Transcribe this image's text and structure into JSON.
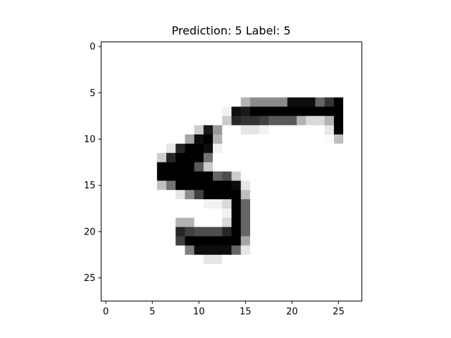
{
  "title": "Prediction: 5 Label: 5",
  "chart_data": {
    "type": "heatmap",
    "title": "Prediction: 5 Label: 5",
    "xlabel": "",
    "ylabel": "",
    "x_ticks": [
      0,
      5,
      10,
      15,
      20,
      25
    ],
    "y_ticks": [
      0,
      5,
      10,
      15,
      20,
      25
    ],
    "xlim": [
      -0.5,
      27.5
    ],
    "ylim": [
      27.5,
      -0.5
    ],
    "colormap": "gray_r",
    "grid": false,
    "matrix": [
      [
        0,
        0,
        0,
        0,
        0,
        0,
        0,
        0,
        0,
        0,
        0,
        0,
        0,
        0,
        0,
        0,
        0,
        0,
        0,
        0,
        0,
        0,
        0,
        0,
        0,
        0,
        0,
        0
      ],
      [
        0,
        0,
        0,
        0,
        0,
        0,
        0,
        0,
        0,
        0,
        0,
        0,
        0,
        0,
        0,
        0,
        0,
        0,
        0,
        0,
        0,
        0,
        0,
        0,
        0,
        0,
        0,
        0
      ],
      [
        0,
        0,
        0,
        0,
        0,
        0,
        0,
        0,
        0,
        0,
        0,
        0,
        0,
        0,
        0,
        0,
        0,
        0,
        0,
        0,
        0,
        0,
        0,
        0,
        0,
        0,
        0,
        0
      ],
      [
        0,
        0,
        0,
        0,
        0,
        0,
        0,
        0,
        0,
        0,
        0,
        0,
        0,
        0,
        0,
        0,
        0,
        0,
        0,
        0,
        0,
        0,
        0,
        0,
        0,
        0,
        0,
        0
      ],
      [
        0,
        0,
        0,
        0,
        0,
        0,
        0,
        0,
        0,
        0,
        0,
        0,
        0,
        0,
        0,
        0,
        0,
        0,
        0,
        0,
        0,
        0,
        0,
        0,
        0,
        0,
        0,
        0
      ],
      [
        0,
        0,
        0,
        0,
        0,
        0,
        0,
        0,
        0,
        0,
        0,
        0,
        0,
        0,
        0,
        0,
        0,
        0,
        0,
        0,
        0,
        0,
        0,
        0,
        0,
        0,
        0,
        0
      ],
      [
        0,
        0,
        0,
        0,
        0,
        0,
        0,
        0,
        0,
        0,
        0,
        0,
        0,
        0,
        0,
        0.3,
        0.45,
        0.45,
        0.45,
        0.45,
        0.95,
        0.95,
        0.95,
        0.6,
        0.8,
        1,
        0,
        0
      ],
      [
        0,
        0,
        0,
        0,
        0,
        0,
        0,
        0,
        0,
        0,
        0,
        0,
        0,
        0.05,
        0.95,
        0.9,
        1,
        1,
        1,
        1,
        1,
        1,
        1,
        1,
        1,
        1,
        0,
        0
      ],
      [
        0,
        0,
        0,
        0,
        0,
        0,
        0,
        0,
        0,
        0,
        0,
        0,
        0,
        0.2,
        0.85,
        0.8,
        0.8,
        0.75,
        0.65,
        0.65,
        0.65,
        0.3,
        0.15,
        0.15,
        0.3,
        1,
        0,
        0
      ],
      [
        0,
        0,
        0,
        0,
        0,
        0,
        0,
        0,
        0,
        0,
        0.2,
        0.9,
        0.4,
        0,
        0,
        0.1,
        0.1,
        0.05,
        0,
        0,
        0,
        0,
        0,
        0,
        0.1,
        1,
        0,
        0
      ],
      [
        0,
        0,
        0,
        0,
        0,
        0,
        0,
        0,
        0,
        0.35,
        0.95,
        1,
        0.3,
        0,
        0,
        0,
        0,
        0,
        0,
        0,
        0,
        0,
        0,
        0,
        0.02,
        0.25,
        0,
        0
      ],
      [
        0,
        0,
        0,
        0,
        0,
        0,
        0,
        0.1,
        0.85,
        1,
        1,
        0.95,
        0.05,
        0,
        0,
        0,
        0,
        0,
        0,
        0,
        0,
        0,
        0,
        0,
        0,
        0,
        0,
        0
      ],
      [
        0,
        0,
        0,
        0,
        0,
        0,
        0.2,
        0.85,
        1,
        1,
        1,
        0.55,
        0,
        0,
        0,
        0,
        0,
        0,
        0,
        0,
        0,
        0,
        0,
        0,
        0,
        0,
        0,
        0
      ],
      [
        0,
        0,
        0,
        0,
        0,
        0,
        1,
        1,
        1,
        1,
        0.65,
        0.2,
        0,
        0,
        0,
        0,
        0,
        0,
        0,
        0,
        0,
        0,
        0,
        0,
        0,
        0,
        0,
        0
      ],
      [
        0,
        0,
        0,
        0,
        0,
        0,
        1,
        1,
        1,
        1,
        1,
        1,
        0.6,
        0.7,
        0.2,
        0,
        0,
        0,
        0,
        0,
        0,
        0,
        0,
        0,
        0,
        0,
        0,
        0
      ],
      [
        0,
        0,
        0,
        0,
        0,
        0,
        0.25,
        0.55,
        1,
        1,
        1,
        1,
        1,
        1,
        0.95,
        0.1,
        0,
        0,
        0,
        0,
        0,
        0,
        0,
        0,
        0,
        0,
        0,
        0
      ],
      [
        0,
        0,
        0,
        0,
        0,
        0,
        0,
        0,
        0.1,
        0.45,
        0.75,
        1,
        1,
        1,
        1,
        0.25,
        0,
        0,
        0,
        0,
        0,
        0,
        0,
        0,
        0,
        0,
        0,
        0
      ],
      [
        0,
        0,
        0,
        0,
        0,
        0,
        0,
        0,
        0,
        0,
        0,
        0.05,
        0.05,
        0.15,
        1,
        0.6,
        0,
        0,
        0,
        0,
        0,
        0,
        0,
        0,
        0,
        0,
        0,
        0
      ],
      [
        0,
        0,
        0,
        0,
        0,
        0,
        0,
        0,
        0,
        0,
        0,
        0,
        0,
        0.05,
        1,
        0.6,
        0,
        0,
        0,
        0,
        0,
        0,
        0,
        0,
        0,
        0,
        0,
        0
      ],
      [
        0,
        0,
        0,
        0,
        0,
        0,
        0,
        0,
        0.3,
        0.3,
        0,
        0,
        0,
        0.15,
        1,
        0.6,
        0,
        0,
        0,
        0,
        0,
        0,
        0,
        0,
        0,
        0,
        0,
        0
      ],
      [
        0,
        0,
        0,
        0,
        0,
        0,
        0,
        0,
        0.85,
        0.75,
        0.7,
        0.7,
        0.7,
        0.85,
        1,
        0.6,
        0,
        0,
        0,
        0,
        0,
        0,
        0,
        0,
        0,
        0,
        0,
        0
      ],
      [
        0,
        0,
        0,
        0,
        0,
        0,
        0,
        0,
        0.75,
        1,
        1,
        1,
        1,
        1,
        1,
        0.35,
        0,
        0,
        0,
        0,
        0,
        0,
        0,
        0,
        0,
        0,
        0,
        0
      ],
      [
        0,
        0,
        0,
        0,
        0,
        0,
        0,
        0,
        0,
        0.5,
        0.95,
        0.95,
        0.95,
        0.95,
        0.6,
        0.1,
        0,
        0,
        0,
        0,
        0,
        0,
        0,
        0,
        0,
        0,
        0,
        0
      ],
      [
        0,
        0,
        0,
        0,
        0,
        0,
        0,
        0,
        0,
        0,
        0,
        0.1,
        0.1,
        0,
        0,
        0,
        0,
        0,
        0,
        0,
        0,
        0,
        0,
        0,
        0,
        0,
        0,
        0
      ],
      [
        0,
        0,
        0,
        0,
        0,
        0,
        0,
        0,
        0,
        0,
        0,
        0,
        0,
        0,
        0,
        0,
        0,
        0,
        0,
        0,
        0,
        0,
        0,
        0,
        0,
        0,
        0,
        0
      ],
      [
        0,
        0,
        0,
        0,
        0,
        0,
        0,
        0,
        0,
        0,
        0,
        0,
        0,
        0,
        0,
        0,
        0,
        0,
        0,
        0,
        0,
        0,
        0,
        0,
        0,
        0,
        0,
        0
      ],
      [
        0,
        0,
        0,
        0,
        0,
        0,
        0,
        0,
        0,
        0,
        0,
        0,
        0,
        0,
        0,
        0,
        0,
        0,
        0,
        0,
        0,
        0,
        0,
        0,
        0,
        0,
        0,
        0
      ],
      [
        0,
        0,
        0,
        0,
        0,
        0,
        0,
        0,
        0,
        0,
        0,
        0,
        0,
        0,
        0,
        0,
        0,
        0,
        0,
        0,
        0,
        0,
        0,
        0,
        0,
        0,
        0,
        0
      ]
    ]
  }
}
